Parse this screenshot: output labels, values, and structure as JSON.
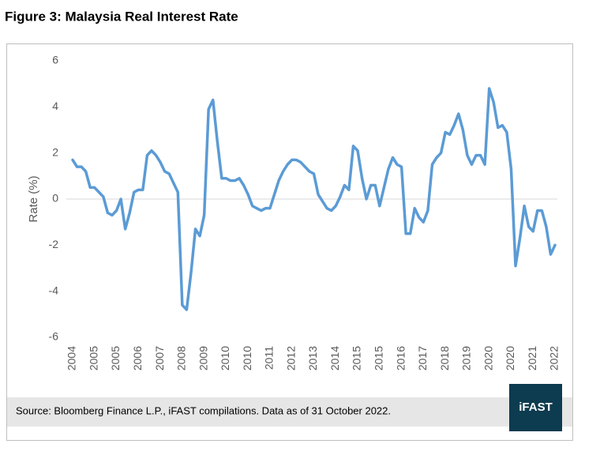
{
  "chart_data": {
    "type": "line",
    "title": "Figure 3: Malaysia Real Interest Rate",
    "ylabel": "Rate (%)",
    "categories": [
      "2004",
      null,
      null,
      null,
      null,
      "2005",
      null,
      null,
      null,
      null,
      "2005",
      null,
      null,
      null,
      null,
      "2006",
      null,
      null,
      null,
      null,
      "2007",
      null,
      null,
      null,
      null,
      "2008",
      null,
      null,
      null,
      null,
      "2009",
      null,
      null,
      null,
      null,
      "2010",
      null,
      null,
      null,
      null,
      "2010",
      null,
      null,
      null,
      null,
      "2011",
      null,
      null,
      null,
      null,
      "2012",
      null,
      null,
      null,
      null,
      "2013",
      null,
      null,
      null,
      null,
      "2014",
      null,
      null,
      null,
      null,
      "2015",
      null,
      null,
      null,
      null,
      "2015",
      null,
      null,
      null,
      null,
      "2016",
      null,
      null,
      null,
      null,
      "2017",
      null,
      null,
      null,
      null,
      "2018",
      null,
      null,
      null,
      null,
      "2019",
      null,
      null,
      null,
      null,
      "2020",
      null,
      null,
      null,
      null,
      "2020",
      null,
      null,
      null,
      null,
      "2021",
      null,
      null,
      null,
      null,
      "2022"
    ],
    "series": [
      {
        "name": "Real Interest Rate",
        "color": "#5b9bd5",
        "values": [
          1.7,
          1.4,
          1.4,
          1.2,
          0.5,
          0.5,
          0.3,
          0.1,
          -0.6,
          -0.7,
          -0.5,
          0.0,
          -1.3,
          -0.6,
          0.3,
          0.4,
          0.4,
          1.9,
          2.1,
          1.9,
          1.6,
          1.2,
          1.1,
          0.7,
          0.3,
          -4.6,
          -4.8,
          -3.2,
          -1.3,
          -1.6,
          -0.7,
          3.9,
          4.3,
          2.5,
          0.9,
          0.9,
          0.8,
          0.8,
          0.9,
          0.6,
          0.2,
          -0.3,
          -0.4,
          -0.5,
          -0.4,
          -0.4,
          0.2,
          0.8,
          1.2,
          1.5,
          1.7,
          1.7,
          1.6,
          1.4,
          1.2,
          1.1,
          0.2,
          -0.1,
          -0.4,
          -0.5,
          -0.3,
          0.1,
          0.6,
          0.4,
          2.3,
          2.1,
          0.9,
          0.0,
          0.6,
          0.6,
          -0.3,
          0.5,
          1.3,
          1.8,
          1.5,
          1.4,
          -1.5,
          -1.5,
          -0.4,
          -0.8,
          -1.0,
          -0.5,
          1.5,
          1.8,
          2.0,
          2.9,
          2.8,
          3.2,
          3.7,
          3.0,
          1.9,
          1.5,
          1.9,
          1.9,
          1.5,
          4.8,
          4.2,
          3.1,
          3.2,
          2.9,
          1.3,
          -2.9,
          -1.7,
          -0.3,
          -1.2,
          -1.4,
          -0.5,
          -0.5,
          -1.2,
          -2.4,
          -2.0
        ]
      }
    ],
    "ylim": [
      -6,
      6
    ],
    "yticks": [
      -6,
      -4,
      -2,
      0,
      2,
      4,
      6
    ],
    "grid": false
  },
  "source": "Source: Bloomberg Finance L.P., iFAST compilations. Data as of 31 October 2022.",
  "logo": "iFAST"
}
